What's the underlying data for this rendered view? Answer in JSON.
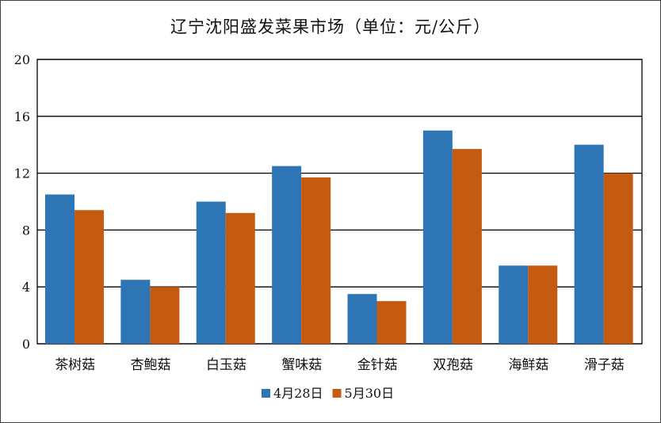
{
  "chart_data": {
    "type": "bar",
    "title": "辽宁沈阳盛发菜果市场（单位：元/公斤）",
    "categories": [
      "茶树菇",
      "杏鲍菇",
      "白玉菇",
      "蟹味菇",
      "金针菇",
      "双孢菇",
      "海鲜菇",
      "滑子菇"
    ],
    "series": [
      {
        "name": "4月28日",
        "color": "#2e75b6",
        "values": [
          10.5,
          4.5,
          10,
          12.5,
          3.5,
          15,
          5.5,
          14
        ]
      },
      {
        "name": "5月30日",
        "color": "#c55a11",
        "values": [
          9.4,
          4,
          9.2,
          11.7,
          3,
          13.7,
          5.5,
          12
        ]
      }
    ],
    "ylim": [
      0,
      20
    ],
    "yticks": [
      0,
      4,
      8,
      12,
      16,
      20
    ],
    "grid": true,
    "legend_position": "bottom"
  }
}
